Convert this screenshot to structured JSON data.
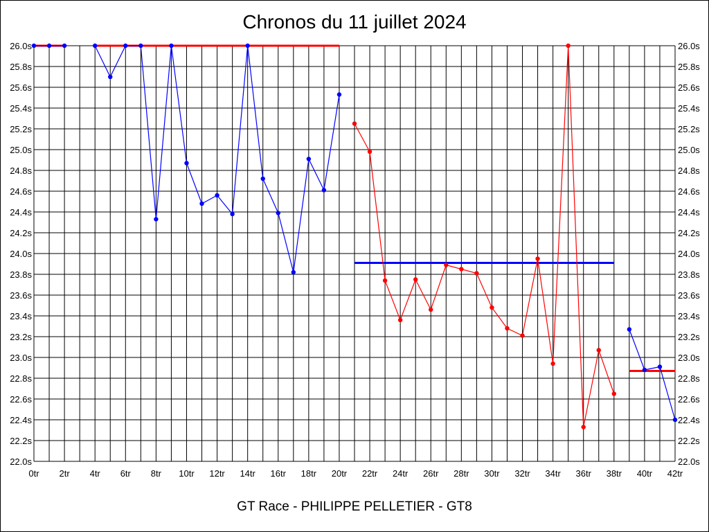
{
  "chart_data": {
    "type": "line",
    "title": "Chronos du 11 juillet 2024",
    "footer": "GT Race - PHILIPPE PELLETIER - GT8",
    "xlim": [
      0,
      42
    ],
    "ylim": [
      22.0,
      26.0
    ],
    "grid": true,
    "x_tick_labels": [
      "0tr",
      "2tr",
      "4tr",
      "6tr",
      "8tr",
      "10tr",
      "12tr",
      "14tr",
      "16tr",
      "18tr",
      "20tr",
      "22tr",
      "24tr",
      "26tr",
      "28tr",
      "30tr",
      "32tr",
      "34tr",
      "36tr",
      "38tr",
      "40tr",
      "42tr"
    ],
    "y_tick_labels": [
      "22.0s",
      "22.2s",
      "22.4s",
      "22.6s",
      "22.8s",
      "23.0s",
      "23.2s",
      "23.4s",
      "23.6s",
      "23.8s",
      "24.0s",
      "24.2s",
      "24.4s",
      "24.6s",
      "24.8s",
      "25.0s",
      "25.2s",
      "25.4s",
      "25.6s",
      "25.8s",
      "26.0s"
    ],
    "colors": {
      "blue": "#0000ff",
      "red": "#ff0000",
      "grid": "#000000"
    },
    "series": [
      {
        "color": "#0000ff",
        "points": [
          [
            0,
            26.0
          ],
          [
            1,
            26.0
          ],
          [
            2,
            26.0
          ]
        ]
      },
      {
        "color": "#0000ff",
        "points": [
          [
            4,
            26.0
          ],
          [
            5,
            25.7
          ],
          [
            6,
            26.0
          ],
          [
            7,
            26.0
          ],
          [
            8,
            24.33
          ],
          [
            9,
            26.0
          ],
          [
            10,
            24.87
          ],
          [
            11,
            24.48
          ],
          [
            12,
            24.56
          ],
          [
            13,
            24.38
          ],
          [
            14,
            26.0
          ],
          [
            15,
            24.72
          ],
          [
            16,
            24.39
          ],
          [
            17,
            23.82
          ],
          [
            18,
            24.91
          ],
          [
            19,
            24.61
          ],
          [
            20,
            25.53
          ]
        ]
      },
      {
        "color": "#ff0000",
        "points": [
          [
            21,
            25.25
          ],
          [
            22,
            24.98
          ],
          [
            23,
            23.74
          ],
          [
            24,
            23.36
          ],
          [
            25,
            23.75
          ],
          [
            26,
            23.46
          ],
          [
            27,
            23.89
          ],
          [
            28,
            23.85
          ],
          [
            29,
            23.81
          ],
          [
            30,
            23.48
          ],
          [
            31,
            23.28
          ],
          [
            32,
            23.21
          ],
          [
            33,
            23.95
          ],
          [
            34,
            22.94
          ],
          [
            35,
            26.0
          ],
          [
            36,
            22.33
          ],
          [
            37,
            23.07
          ],
          [
            38,
            22.65
          ]
        ]
      },
      {
        "color": "#0000ff",
        "points": [
          [
            39,
            23.27
          ],
          [
            40,
            22.88
          ],
          [
            41,
            22.91
          ],
          [
            42,
            22.4
          ]
        ]
      }
    ],
    "reference_lines": [
      {
        "color": "#ff0000",
        "x": [
          0,
          2
        ],
        "y": 26.0
      },
      {
        "color": "#ff0000",
        "x": [
          4,
          20
        ],
        "y": 26.0
      },
      {
        "color": "#0000ff",
        "x": [
          21,
          38
        ],
        "y": 23.91
      },
      {
        "color": "#ff0000",
        "x": [
          39,
          42
        ],
        "y": 22.87
      }
    ]
  }
}
